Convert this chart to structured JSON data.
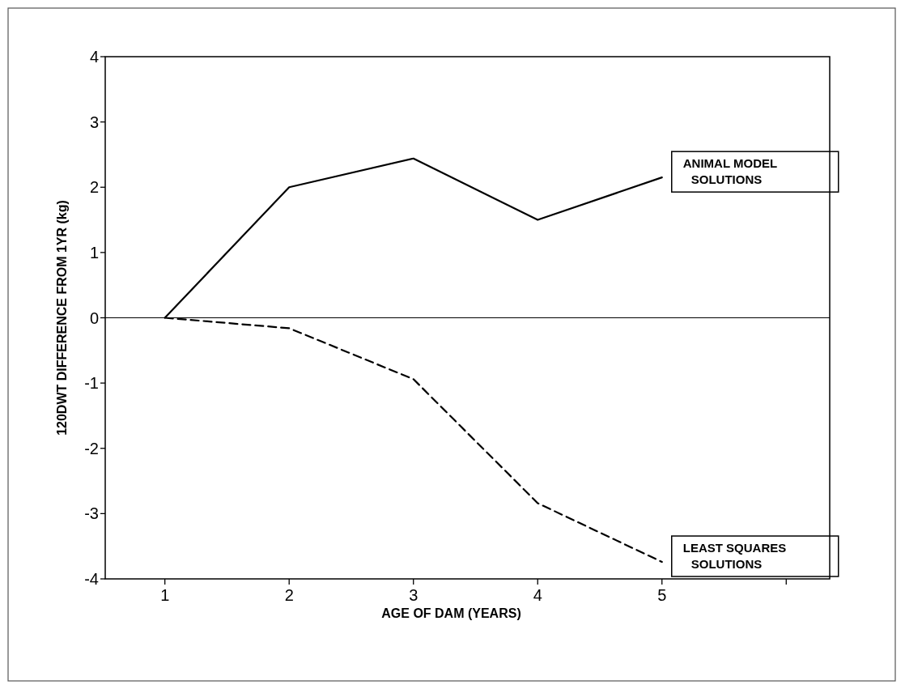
{
  "chart_data": {
    "type": "line",
    "xlabel": "AGE OF DAM (YEARS)",
    "ylabel": "120DWT DIFFERENCE FROM 1YR (kg)",
    "x": [
      1,
      2,
      3,
      4,
      5
    ],
    "series": [
      {
        "name": "ANIMAL MODEL SOLUTIONS",
        "color": "#000000",
        "line_style": "solid",
        "values": [
          0,
          2.0,
          2.44,
          1.5,
          2.15
        ]
      },
      {
        "name": "LEAST SQUARES SOLUTIONS",
        "color": "#000000",
        "line_style": "dashed",
        "values": [
          0,
          -0.16,
          -0.94,
          -2.84,
          -3.74
        ]
      }
    ],
    "xlim": [
      0.52,
      6.35
    ],
    "xticks": [
      1,
      2,
      3,
      4,
      5,
      {
        "value": 6,
        "label": null
      }
    ],
    "ylim": [
      -4,
      4
    ],
    "yticks": [
      -4,
      -3,
      -2,
      -1,
      0,
      1,
      2,
      3,
      4
    ],
    "ref_lines": [
      {
        "axis": "y",
        "value": 0,
        "color": "#000000"
      }
    ],
    "grid": false,
    "marker": "none"
  }
}
